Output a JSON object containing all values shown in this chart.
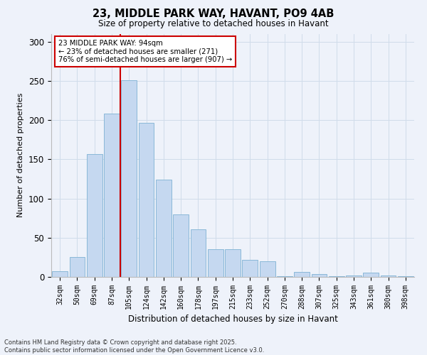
{
  "title1": "23, MIDDLE PARK WAY, HAVANT, PO9 4AB",
  "title2": "Size of property relative to detached houses in Havant",
  "xlabel": "Distribution of detached houses by size in Havant",
  "ylabel": "Number of detached properties",
  "categories": [
    "32sqm",
    "50sqm",
    "69sqm",
    "87sqm",
    "105sqm",
    "124sqm",
    "142sqm",
    "160sqm",
    "178sqm",
    "197sqm",
    "215sqm",
    "233sqm",
    "252sqm",
    "270sqm",
    "288sqm",
    "307sqm",
    "325sqm",
    "343sqm",
    "361sqm",
    "380sqm",
    "398sqm"
  ],
  "values": [
    7,
    25,
    157,
    208,
    251,
    196,
    124,
    80,
    61,
    35,
    35,
    22,
    20,
    1,
    6,
    4,
    1,
    2,
    5,
    2,
    1
  ],
  "bar_color": "#c5d8f0",
  "bar_edge_color": "#8ab8d8",
  "grid_color": "#d0dcea",
  "background_color": "#eef2fa",
  "vline_color": "#cc0000",
  "annotation_text": "23 MIDDLE PARK WAY: 94sqm\n← 23% of detached houses are smaller (271)\n76% of semi-detached houses are larger (907) →",
  "annotation_box_color": "#ffffff",
  "annotation_box_edge": "#cc0000",
  "footer": "Contains HM Land Registry data © Crown copyright and database right 2025.\nContains public sector information licensed under the Open Government Licence v3.0.",
  "ylim": [
    0,
    310
  ],
  "vline_index": 3
}
